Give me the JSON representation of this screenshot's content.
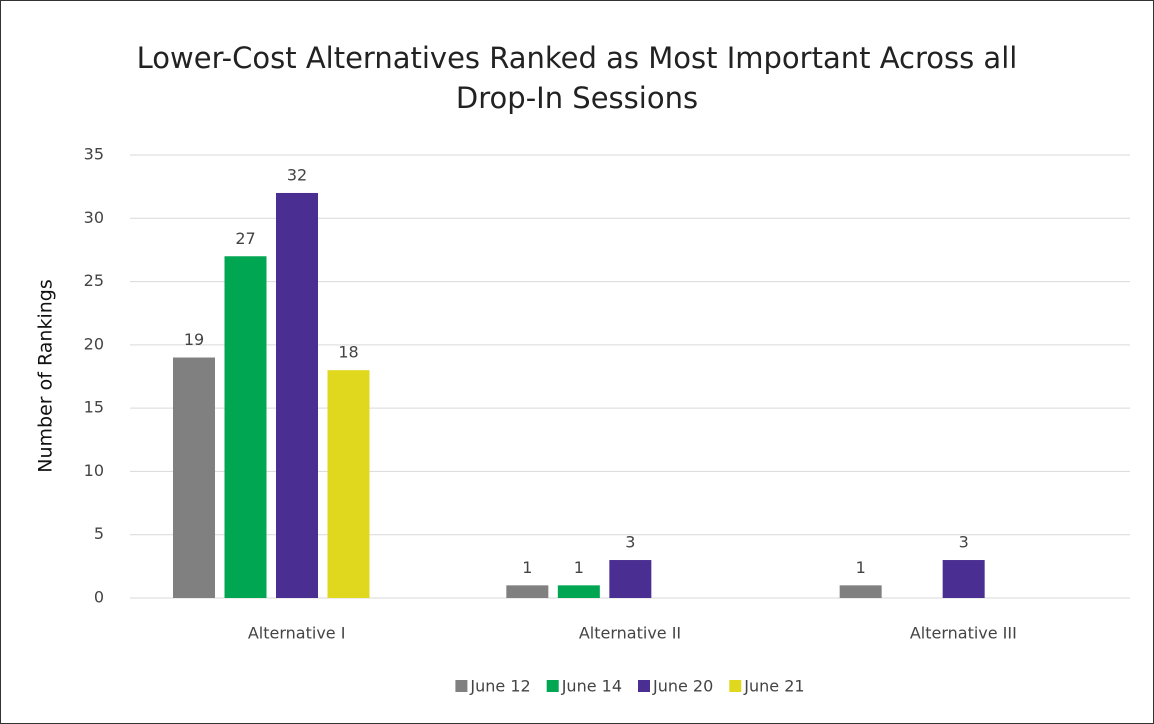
{
  "chart_data": {
    "type": "bar",
    "title": "Lower-Cost Alternatives Ranked as Most Important Across all Drop-In Sessions",
    "y_label": "Number of Rankings",
    "categories": [
      "Alternative I",
      "Alternative II",
      "Alternative III"
    ],
    "series": [
      {
        "name": "June 12",
        "color": "#808080",
        "values": [
          19,
          1,
          1
        ]
      },
      {
        "name": "June 14",
        "color": "#00a651",
        "values": [
          27,
          1,
          null
        ]
      },
      {
        "name": "June 20",
        "color": "#4b2e91",
        "values": [
          32,
          3,
          3
        ]
      },
      {
        "name": "June 21",
        "color": "#e0d81e",
        "values": [
          18,
          null,
          null
        ]
      }
    ],
    "ylim": [
      0,
      35
    ],
    "yticks": [
      0,
      5,
      10,
      15,
      20,
      25,
      30,
      35
    ],
    "grid": true,
    "legend": "bottom"
  }
}
